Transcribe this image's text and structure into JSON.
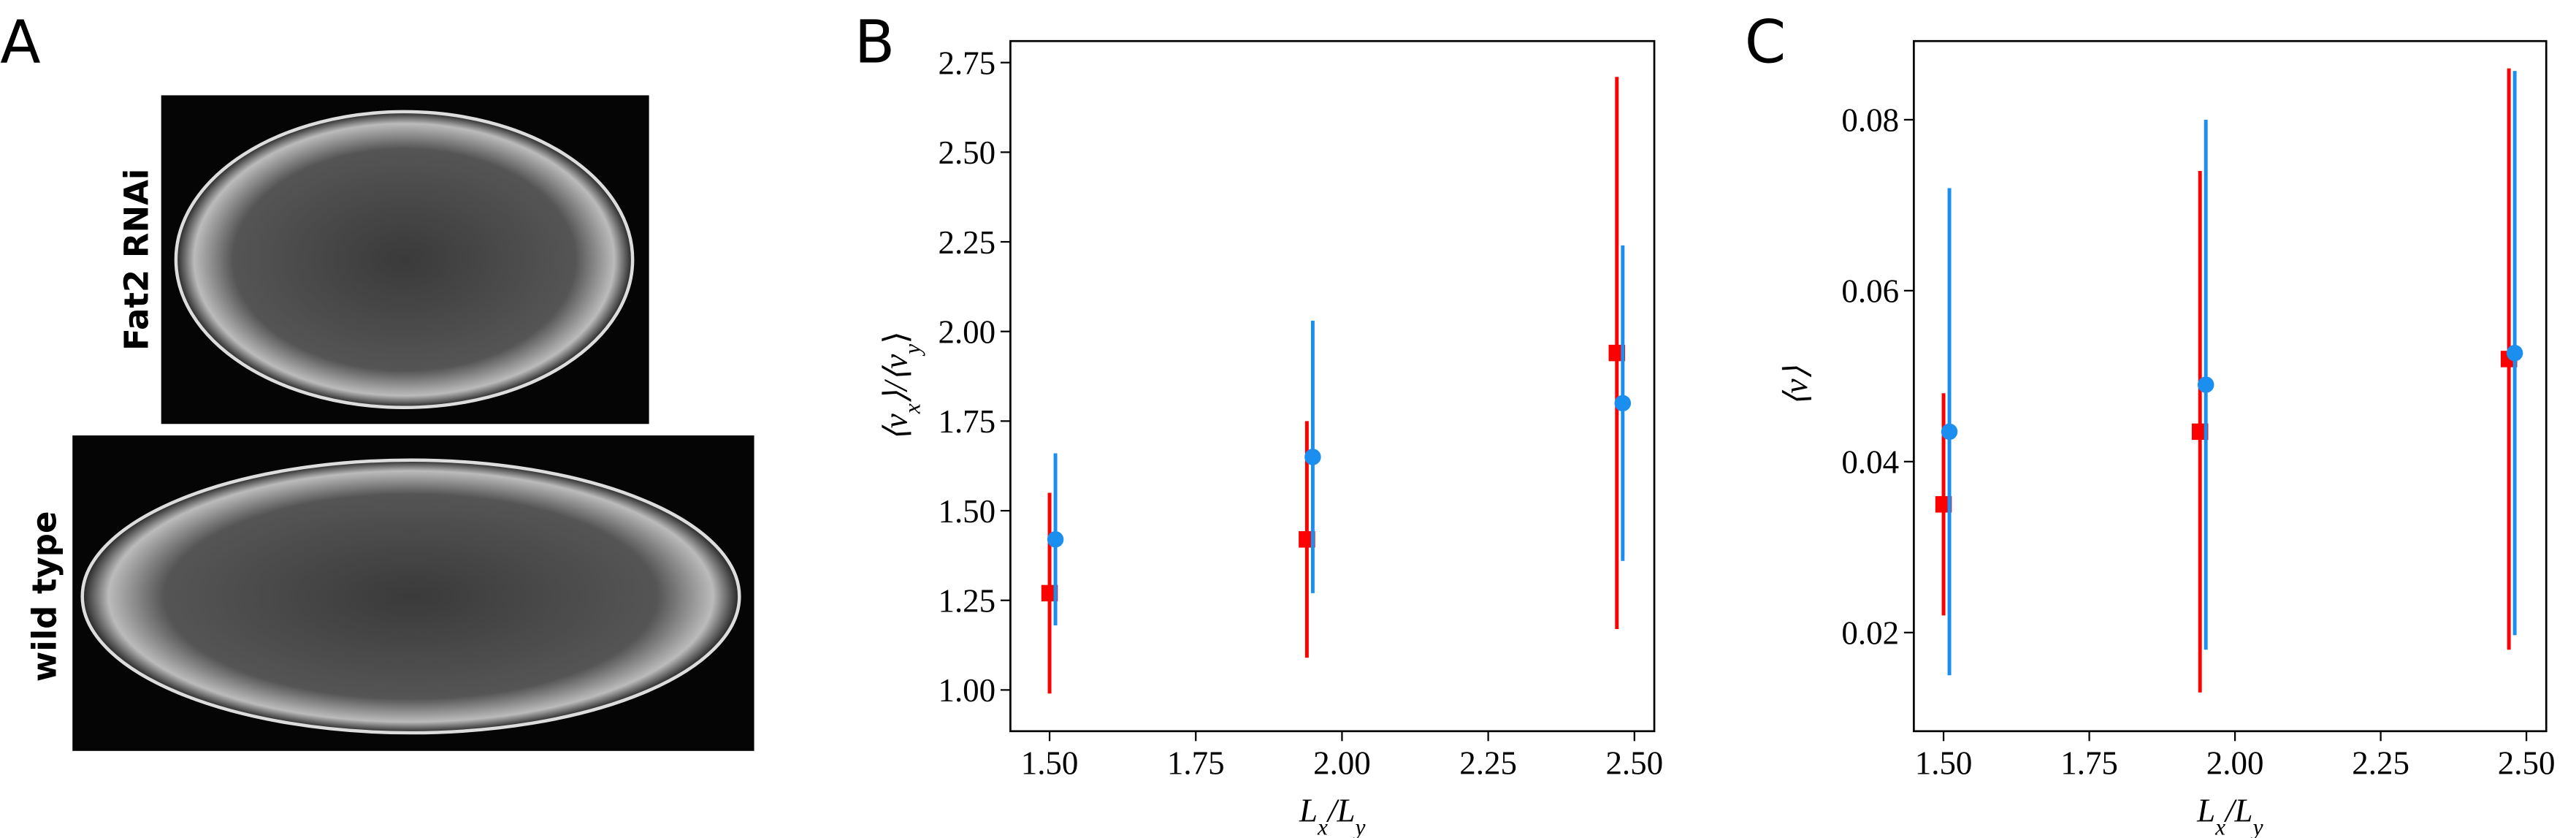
{
  "figure": {
    "panel_labels": [
      "A",
      "B",
      "C"
    ],
    "image_labels": [
      "Fat2 RNAi",
      "wild type"
    ]
  },
  "chart_data": [
    {
      "type": "errorbar",
      "xlabel": "L_x/L_y",
      "ylabel": "⟨v_x⟩/⟨v_y⟩",
      "xlim": [
        1.433,
        2.534
      ],
      "ylim": [
        0.885,
        2.81
      ],
      "xticks": [
        {
          "value": 1.5,
          "label": "1.50"
        },
        {
          "value": 1.75,
          "label": "1.75"
        },
        {
          "value": 2.0,
          "label": "2.00"
        },
        {
          "value": 2.25,
          "label": "2.25"
        },
        {
          "value": 2.5,
          "label": "2.50"
        }
      ],
      "yticks": [
        {
          "value": 1.0,
          "label": "1.00"
        },
        {
          "value": 1.25,
          "label": "1.25"
        },
        {
          "value": 1.5,
          "label": "1.50"
        },
        {
          "value": 1.75,
          "label": "1.75"
        },
        {
          "value": 2.0,
          "label": "2.00"
        },
        {
          "value": 2.25,
          "label": "2.25"
        },
        {
          "value": 2.5,
          "label": "2.50"
        },
        {
          "value": 2.75,
          "label": "2.75"
        }
      ],
      "series": [
        {
          "color": "#ff0000",
          "marker": "square",
          "x": [
            1.5,
            1.94,
            2.47
          ],
          "values": [
            1.27,
            1.42,
            1.94
          ],
          "errors": [
            0.28,
            0.33,
            0.77
          ]
        },
        {
          "color": "#1a8fef",
          "marker": "circle",
          "x": [
            1.51,
            1.95,
            2.48
          ],
          "values": [
            1.42,
            1.65,
            1.8
          ],
          "errors": [
            0.24,
            0.38,
            0.44
          ]
        }
      ]
    },
    {
      "type": "errorbar",
      "xlabel": "L_x/L_y",
      "ylabel": "⟨v⟩",
      "xlim": [
        1.449,
        2.534
      ],
      "ylim": [
        0.00846,
        0.0892
      ],
      "xticks": [
        {
          "value": 1.5,
          "label": "1.50"
        },
        {
          "value": 1.75,
          "label": "1.75"
        },
        {
          "value": 2.0,
          "label": "2.00"
        },
        {
          "value": 2.25,
          "label": "2.25"
        },
        {
          "value": 2.5,
          "label": "2.50"
        }
      ],
      "yticks": [
        0.02,
        0.04,
        0.06,
        0.08
      ],
      "series": [
        {
          "color": "#ff0000",
          "marker": "square",
          "x": [
            1.5,
            1.94,
            2.47
          ],
          "values": [
            0.035,
            0.0435,
            0.052
          ],
          "errors": [
            0.013,
            0.0305,
            0.034
          ]
        },
        {
          "color": "#1a8fef",
          "marker": "circle",
          "x": [
            1.51,
            1.95,
            2.48
          ],
          "values": [
            0.0435,
            0.049,
            0.0527
          ],
          "errors": [
            0.0285,
            0.031,
            0.033
          ]
        }
      ]
    }
  ]
}
